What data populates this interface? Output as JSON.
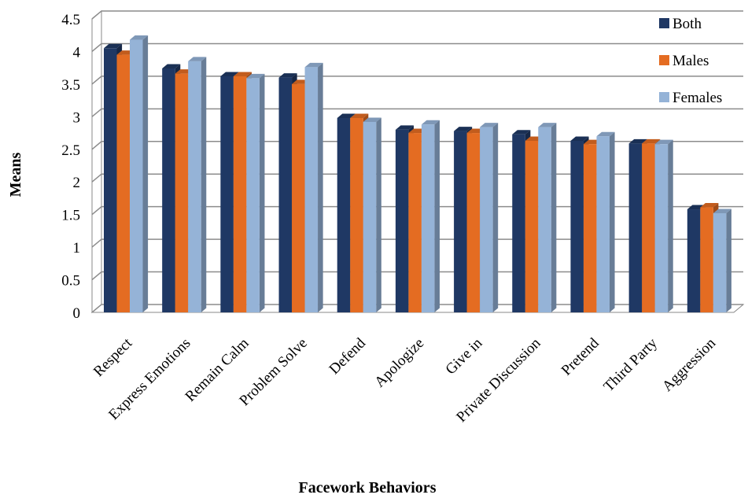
{
  "chart_data": {
    "type": "bar",
    "title": "",
    "xlabel": "Facework Behaviors",
    "ylabel": "Means",
    "ylim": [
      0,
      4.5
    ],
    "yticks": [
      "0",
      "0.5",
      "1",
      "1.5",
      "2",
      "2.5",
      "3",
      "3.5",
      "4",
      "4.5"
    ],
    "grid": true,
    "legend_position": "right",
    "categories": [
      "Respect",
      "Express Emotions",
      "Remain Calm",
      "Problem Solve",
      "Defend",
      "Apologize",
      "Give in",
      "Private Discussion",
      "Pretend",
      "Third Party",
      "Aggression"
    ],
    "series": [
      {
        "name": "Both",
        "color": "#1f3864",
        "values": [
          4.05,
          3.74,
          3.62,
          3.6,
          2.98,
          2.8,
          2.78,
          2.73,
          2.63,
          2.59,
          1.58
        ]
      },
      {
        "name": "Males",
        "color": "#e46c22",
        "values": [
          3.95,
          3.66,
          3.62,
          3.5,
          2.98,
          2.75,
          2.75,
          2.63,
          2.58,
          2.59,
          1.61
        ]
      },
      {
        "name": "Females",
        "color": "#95b3d7",
        "values": [
          4.18,
          3.85,
          3.59,
          3.76,
          2.92,
          2.88,
          2.84,
          2.84,
          2.7,
          2.58,
          1.52
        ]
      }
    ]
  }
}
